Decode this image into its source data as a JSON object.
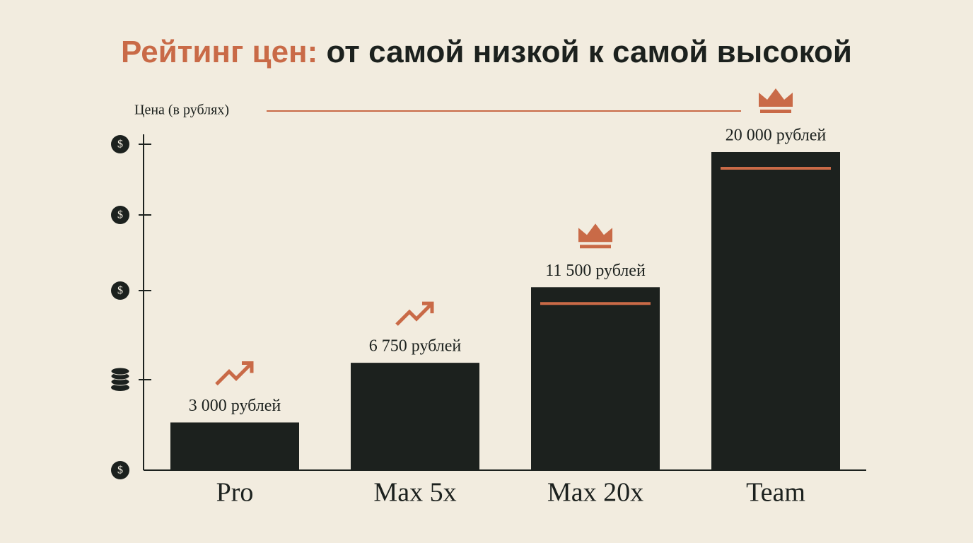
{
  "chart_data": {
    "type": "bar",
    "title_accent": "Рейтинг цен:",
    "title": "от самой низкой к самой высокой",
    "ylabel": "Цена (в рублях)",
    "categories": [
      "Pro",
      "Max 5x",
      "Max 20x",
      "Team"
    ],
    "values": [
      3000,
      6750,
      11500,
      20000
    ],
    "value_labels": [
      "3 000 рублей",
      "6 750 рублей",
      "11 500 рублей",
      "20 000 рублей"
    ],
    "color": "#1c211e",
    "accent_color": "#c96a47",
    "ylim": [
      0,
      21000
    ]
  }
}
